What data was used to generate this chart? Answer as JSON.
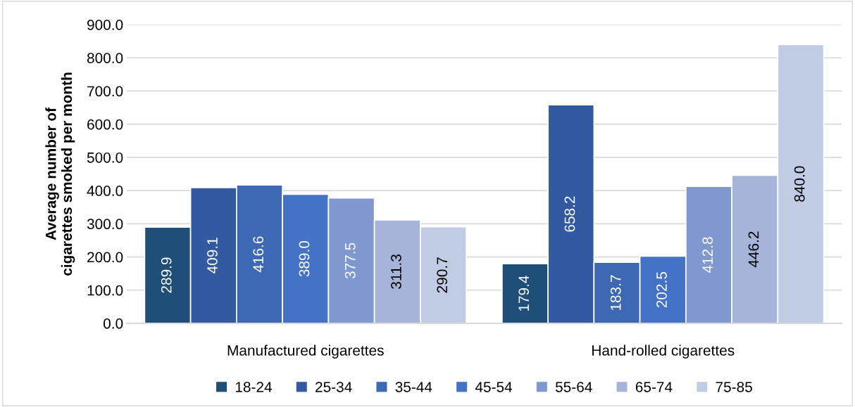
{
  "chart_data": {
    "type": "bar",
    "ylabel": "Average number of cigarettes smoked per month",
    "categories": [
      "Manufactured cigarettes",
      "Hand-rolled cigarettes"
    ],
    "series": [
      {
        "name": "18-24",
        "color": "#1f4e79",
        "values": [
          289.9,
          179.4
        ],
        "value_labels": [
          "289.9",
          "179.4"
        ]
      },
      {
        "name": "25-34",
        "color": "#335aa0",
        "values": [
          409.1,
          658.2
        ],
        "value_labels": [
          "409.1",
          "658.2"
        ]
      },
      {
        "name": "35-44",
        "color": "#3d69b4",
        "values": [
          416.6,
          183.7
        ],
        "value_labels": [
          "416.6",
          "183.7"
        ]
      },
      {
        "name": "45-54",
        "color": "#4472c4",
        "values": [
          389.0,
          202.5
        ],
        "value_labels": [
          "389.0",
          "202.5"
        ]
      },
      {
        "name": "55-64",
        "color": "#7f98cf",
        "values": [
          377.5,
          412.8
        ],
        "value_labels": [
          "377.5",
          "412.8"
        ]
      },
      {
        "name": "65-74",
        "color": "#a6b4da",
        "values": [
          311.3,
          446.2
        ],
        "value_labels": [
          "311.3",
          "446.2"
        ]
      },
      {
        "name": "75-85",
        "color": "#c0cbe4",
        "values": [
          290.7,
          840.0
        ],
        "value_labels": [
          "290.7",
          "840.0"
        ]
      }
    ],
    "ylim": [
      0,
      900
    ],
    "yticks": [
      {
        "value": 0,
        "label": "0.0"
      },
      {
        "value": 100,
        "label": "100.0"
      },
      {
        "value": 200,
        "label": "200.0"
      },
      {
        "value": 300,
        "label": "300.0"
      },
      {
        "value": 400,
        "label": "400.0"
      },
      {
        "value": 500,
        "label": "500.0"
      },
      {
        "value": 600,
        "label": "600.0"
      },
      {
        "value": 700,
        "label": "700.0"
      },
      {
        "value": 800,
        "label": "800.0"
      },
      {
        "value": 900,
        "label": "900.0"
      }
    ],
    "grid": "y",
    "legend": "bottom"
  }
}
